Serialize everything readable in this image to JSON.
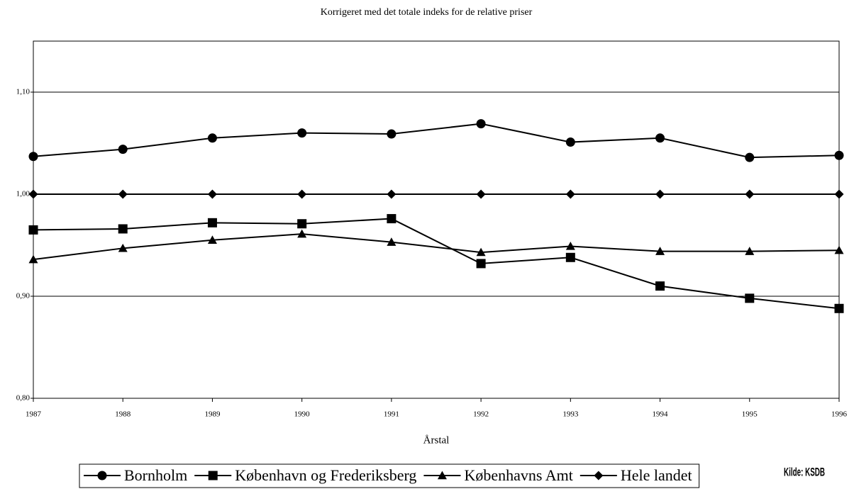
{
  "chart_data": {
    "type": "line",
    "title": "Korrigeret med det totale indeks for de relative priser",
    "x_label": "Årstal",
    "source": "Kilde: KSDB",
    "x": [
      1987,
      1988,
      1989,
      1990,
      1991,
      1992,
      1993,
      1994,
      1995,
      1996
    ],
    "xlim": [
      1987,
      1996
    ],
    "xticks": [
      1987,
      1988,
      1989,
      1990,
      1991,
      1992,
      1993,
      1994,
      1995,
      1996
    ],
    "ylim": [
      0.8,
      1.15
    ],
    "yticks": [
      {
        "value": 0.8,
        "label": "0,80"
      },
      {
        "value": 0.9,
        "label": "0,90"
      },
      {
        "value": 1.0,
        "label": "1,00"
      },
      {
        "value": 1.1,
        "label": "1,10"
      }
    ],
    "grid": true,
    "legend": "bottom",
    "series": [
      {
        "name": "Bornholm",
        "color": "#000000",
        "marker": "circle",
        "values": [
          1.037,
          1.044,
          1.055,
          1.06,
          1.059,
          1.069,
          1.051,
          1.055,
          1.036,
          1.038
        ]
      },
      {
        "name": "København og Frederiksberg",
        "color": "#000000",
        "marker": "square",
        "values": [
          0.965,
          0.966,
          0.972,
          0.971,
          0.976,
          0.932,
          0.938,
          0.91,
          0.898,
          0.888
        ]
      },
      {
        "name": "Københavns Amt",
        "color": "#000000",
        "marker": "triangle",
        "values": [
          0.936,
          0.947,
          0.955,
          0.961,
          0.953,
          0.943,
          0.949,
          0.944,
          0.944,
          0.945
        ]
      },
      {
        "name": "Hele landet",
        "color": "#000000",
        "marker": "diamond",
        "values": [
          1.0,
          1.0,
          1.0,
          1.0,
          1.0,
          1.0,
          1.0,
          1.0,
          1.0,
          1.0
        ]
      }
    ]
  }
}
